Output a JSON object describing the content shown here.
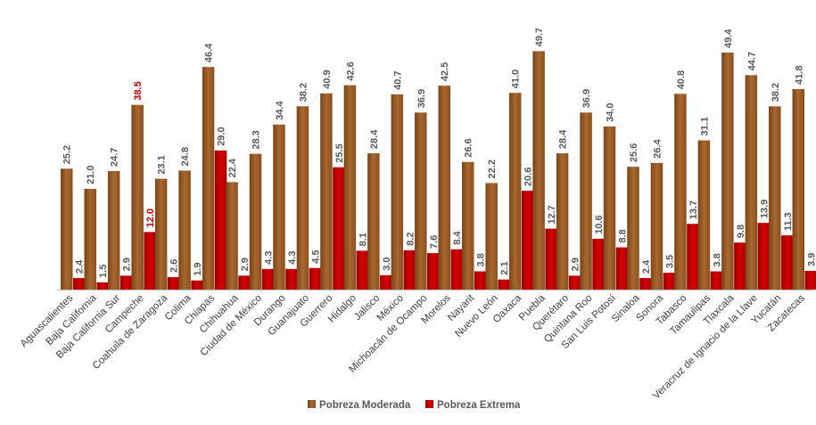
{
  "chart_data": {
    "type": "bar",
    "title": "",
    "xlabel": "",
    "ylabel": "",
    "ylim": [
      0,
      52
    ],
    "grid": false,
    "legend_position": "bottom",
    "categories": [
      "Aguascalientes",
      "Baja California",
      "Baja California Sur",
      "Campeche",
      "Coahuila de Zaragoza",
      "Colima",
      "Chiapas",
      "Chihuahua",
      "Ciudad de México",
      "Durango",
      "Guanajuato",
      "Guerrero",
      "Hidalgo",
      "Jalisco",
      "México",
      "Michoacán de Ocampo",
      "Morelos",
      "Nayarit",
      "Nuevo León",
      "Oaxaca",
      "Puebla",
      "Querétaro",
      "Quintana Roo",
      "San Luis Potosí",
      "Sinaloa",
      "Sonora",
      "Tabasco",
      "Tamaulipas",
      "Tlaxcala",
      "Veracruz de Ignacio de la Llave",
      "Yucatán",
      "Zacatecas"
    ],
    "series": [
      {
        "name": "Pobreza Moderada",
        "color": "#9b5a26",
        "values": [
          25.2,
          21.0,
          24.7,
          38.5,
          23.1,
          24.8,
          46.4,
          22.4,
          28.3,
          34.4,
          38.2,
          40.9,
          42.6,
          28.4,
          40.7,
          36.9,
          42.5,
          26.6,
          22.2,
          41.0,
          49.7,
          28.4,
          36.9,
          34.0,
          25.6,
          26.4,
          40.8,
          31.1,
          49.4,
          44.7,
          38.2,
          41.8
        ],
        "labels": [
          "25.2",
          "21.0",
          "24.7",
          "38.5",
          "23.1",
          "24.8",
          "46.4",
          "22.4",
          "28.3",
          "34.4",
          "38.2",
          "40.9",
          "42.6",
          "28.4",
          "40.7",
          "36.9",
          "42.5",
          "26.6",
          "22.2",
          "41.0",
          "49.7",
          "28.4",
          "36.9",
          "34.0",
          "25.6",
          "26.4",
          "40.8",
          "31.1",
          "49.4",
          "44.7",
          "38.2",
          "41.8"
        ]
      },
      {
        "name": "Pobreza Extrema",
        "color": "#c00000",
        "values": [
          2.4,
          1.5,
          2.9,
          12.0,
          2.6,
          1.9,
          29.0,
          2.9,
          4.3,
          4.3,
          4.5,
          25.5,
          8.1,
          3.0,
          8.2,
          7.6,
          8.4,
          3.8,
          2.1,
          20.6,
          12.7,
          2.9,
          10.6,
          8.8,
          2.4,
          3.5,
          13.7,
          3.8,
          9.8,
          13.9,
          11.3,
          3.9
        ],
        "labels": [
          "2.4",
          "1.5",
          "2.9",
          "12.0",
          "2.6",
          "1.9",
          "29.0",
          "2.9",
          "4.3",
          "4.3",
          "4.5",
          "25.5",
          "8.1",
          "3.0",
          "8.2",
          "7.6",
          "8.4",
          "3.8",
          "2.1",
          "20.6",
          "12.7",
          "2.9",
          "10.6",
          "8.8",
          "2.4",
          "3.5",
          "13.7",
          "3.8",
          "9.8",
          "13.9",
          "11.3",
          "3.9"
        ]
      }
    ],
    "highlight_category": "Campeche",
    "highlight_label_color": "#c00000"
  }
}
